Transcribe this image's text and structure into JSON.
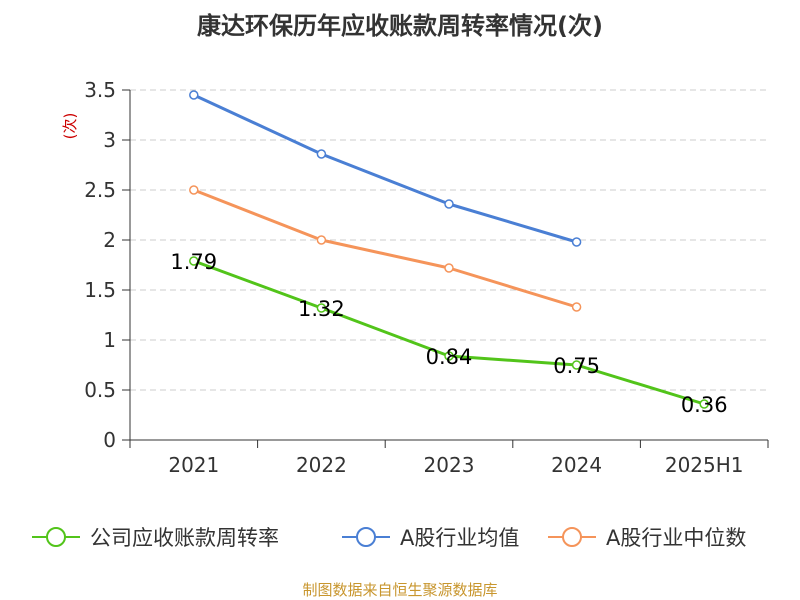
{
  "chart_data": {
    "type": "line",
    "title": "康达环保历年应收账款周转率情况(次)",
    "ylabel": "(次)",
    "xlabel": "",
    "categories": [
      "2021",
      "2022",
      "2023",
      "2024",
      "2025H1"
    ],
    "ylim": [
      0,
      3.5
    ],
    "yticks": [
      "0",
      "0.5",
      "1",
      "1.5",
      "2",
      "2.5",
      "3",
      "3.5"
    ],
    "grid": true,
    "legend_position": "bottom",
    "series": [
      {
        "name": "公司应收账款周转率",
        "color": "#52c41a",
        "values": [
          1.79,
          1.32,
          0.84,
          0.75,
          0.36
        ],
        "labels": [
          "1.79",
          "1.32",
          "0.84",
          "0.75",
          "0.36"
        ]
      },
      {
        "name": "A股行业均值",
        "color": "#4a7fd4",
        "values": [
          3.45,
          2.86,
          2.36,
          1.98,
          null
        ]
      },
      {
        "name": "A股行业中位数",
        "color": "#f5945a",
        "values": [
          2.5,
          2.0,
          1.72,
          1.33,
          null
        ]
      }
    ]
  },
  "footer": {
    "source": "制图数据来自恒生聚源数据库"
  }
}
